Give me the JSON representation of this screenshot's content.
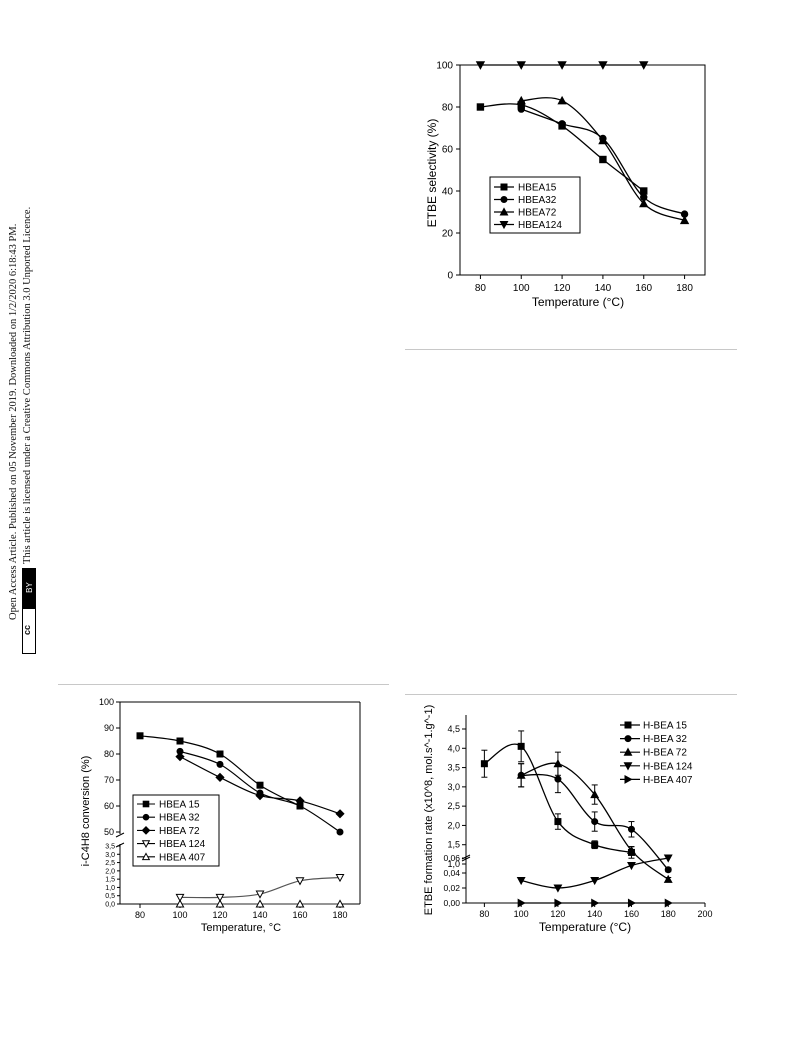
{
  "sidebar": {
    "line1": "Open Access Article. Published on 05 November 2019. Downloaded on 1/2/2020 6:18:43 PM.",
    "line2": "This article is licensed under a Creative Commons Attribution 3.0 Unported Licence.",
    "badge_cc": "cc",
    "badge_by": "BY"
  },
  "chart_data": [
    {
      "type": "line",
      "xlabel": "Temperature (°C)",
      "ylabel": "ETBE selectivity (%)",
      "xlim": [
        70,
        190
      ],
      "ylim": [
        0,
        100
      ],
      "xticks": [
        80,
        100,
        120,
        140,
        160,
        180
      ],
      "yticks": [
        0,
        20,
        40,
        60,
        80,
        100
      ],
      "legend_position": "bottom-left",
      "series": [
        {
          "name": "HBEA15",
          "marker": "square",
          "x": [
            80,
            100,
            120,
            140,
            160
          ],
          "y": [
            80,
            81,
            71,
            55,
            40
          ]
        },
        {
          "name": "HBEA32",
          "marker": "circle",
          "x": [
            100,
            120,
            140,
            160,
            180
          ],
          "y": [
            79,
            72,
            65,
            37,
            29
          ]
        },
        {
          "name": "HBEA72",
          "marker": "triangle-up",
          "x": [
            100,
            120,
            140,
            160,
            180
          ],
          "y": [
            83,
            83,
            64,
            34,
            26
          ]
        },
        {
          "name": "HBEA124",
          "marker": "triangle-down",
          "x": [
            80,
            100,
            120,
            140,
            160
          ],
          "y": [
            100,
            100,
            100,
            100,
            100
          ]
        }
      ]
    },
    {
      "type": "line",
      "xlabel": "Temperature, °C",
      "ylabel": "i-C4H8 conversion (%)",
      "xlim": [
        70,
        190
      ],
      "axis_break": true,
      "upper_ylim": [
        50,
        100
      ],
      "upper_yticks": [
        50,
        60,
        70,
        80,
        90,
        100
      ],
      "lower_ylim": [
        0,
        3.5
      ],
      "lower_yticks": [
        0.0,
        0.5,
        1.0,
        1.5,
        2.0,
        2.5,
        3.0,
        3.5
      ],
      "lower_yticklabels": [
        "0,0",
        "0,5",
        "1,0",
        "1,5",
        "2,0",
        "2,5",
        "3,0",
        "3,5"
      ],
      "xticks": [
        80,
        100,
        120,
        140,
        160,
        180
      ],
      "legend_position": "bottom-left",
      "series": [
        {
          "name": "HBEA 15",
          "marker": "square",
          "x": [
            80,
            100,
            120,
            140,
            160
          ],
          "y": [
            87,
            85,
            80,
            68,
            60
          ]
        },
        {
          "name": "HBEA 32",
          "marker": "circle",
          "x": [
            100,
            120,
            140,
            160,
            180
          ],
          "y": [
            81,
            76,
            65,
            60,
            50
          ]
        },
        {
          "name": "HBEA 72",
          "marker": "diamond",
          "x": [
            100,
            120,
            140,
            160,
            180
          ],
          "y": [
            79,
            71,
            64,
            62,
            57
          ]
        },
        {
          "name": "HBEA 124",
          "marker": "triangle-down-open",
          "x": [
            100,
            120,
            140,
            160,
            180
          ],
          "y": [
            0.4,
            0.4,
            0.6,
            1.4,
            1.6
          ]
        },
        {
          "name": "HBEA  407",
          "marker": "triangle-up-open",
          "x": [
            100,
            120,
            140,
            160,
            180
          ],
          "y": [
            0.0,
            0.0,
            0.0,
            0.0,
            0.0
          ]
        }
      ]
    },
    {
      "type": "line",
      "xlabel": "Temperature  (°C)",
      "ylabel": "ETBE formation rate (x10^8, mol.s^-1.g^-1)",
      "xlim": [
        70,
        200
      ],
      "xticks": [
        80,
        100,
        120,
        140,
        160,
        180,
        200
      ],
      "axis_break": true,
      "upper_ylim": [
        1.0,
        4.5
      ],
      "upper_yticks": [
        1.0,
        1.5,
        2.0,
        2.5,
        3.0,
        3.5,
        4.0,
        4.5
      ],
      "upper_yticklabels": [
        "1,0",
        "1,5",
        "2,0",
        "2,5",
        "3,0",
        "3,5",
        "4,0",
        "4,5"
      ],
      "lower_ylim": [
        0.0,
        0.06
      ],
      "lower_yticks": [
        0.0,
        0.02,
        0.04,
        0.06
      ],
      "lower_yticklabels": [
        "0,00",
        "0,02",
        "0,04",
        "0,06"
      ],
      "legend_position": "top-right",
      "series": [
        {
          "name": "H-BEA 15",
          "marker": "square",
          "x": [
            80,
            100,
            120,
            140,
            160
          ],
          "y": [
            3.6,
            4.05,
            2.1,
            1.5,
            1.3
          ],
          "err": [
            0.35,
            0.4,
            0.2,
            0.1,
            0.15
          ]
        },
        {
          "name": "H-BEA  32",
          "marker": "circle",
          "x": [
            100,
            120,
            140,
            160,
            180
          ],
          "y": [
            3.3,
            3.2,
            2.1,
            1.9,
            0.85
          ],
          "err": [
            0.3,
            0.35,
            0.25,
            0.2,
            0.05
          ]
        },
        {
          "name": "H-BEA 72",
          "marker": "triangle-up",
          "x": [
            100,
            120,
            140,
            160,
            180
          ],
          "y": [
            3.3,
            3.6,
            2.8,
            1.35,
            0.6
          ],
          "err": [
            0.3,
            0.3,
            0.25,
            0.1,
            0.05
          ]
        },
        {
          "name": "H-BEA 124",
          "marker": "triangle-down",
          "x": [
            100,
            120,
            140,
            160,
            180
          ],
          "y": [
            0.03,
            0.02,
            0.03,
            0.05,
            0.06
          ]
        },
        {
          "name": "H-BEA  407",
          "marker": "triangle-right",
          "x": [
            100,
            120,
            140,
            160,
            180
          ],
          "y": [
            0.0,
            0.0,
            0.0,
            0.0,
            0.0
          ]
        }
      ]
    }
  ]
}
